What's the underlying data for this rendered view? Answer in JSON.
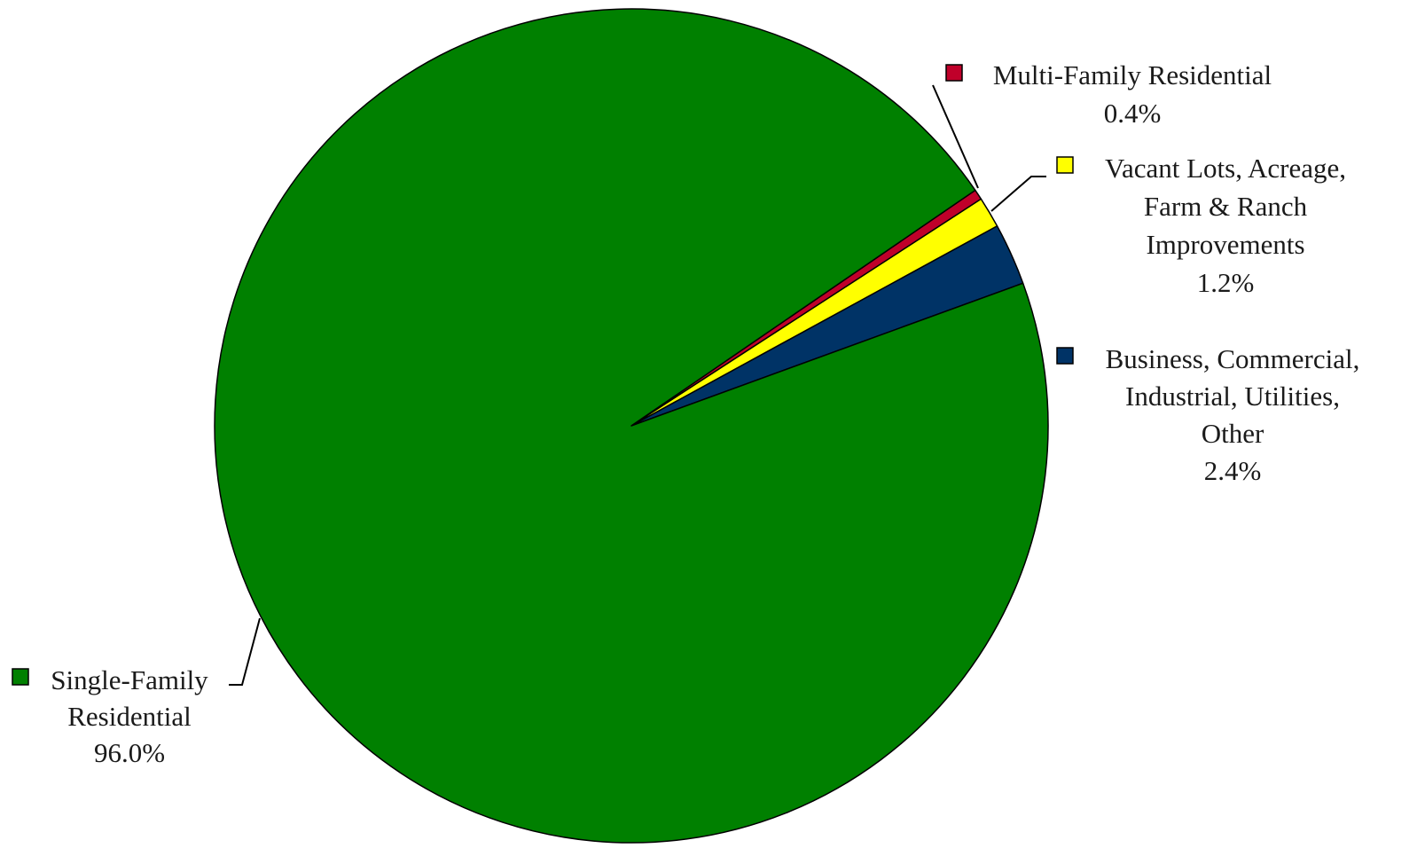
{
  "chart_data": {
    "type": "pie",
    "title": "",
    "slices": [
      {
        "name": "Business, Commercial, Industrial, Utilities, Other",
        "label_lines": [
          "Business, Commercial,",
          "Industrial, Utilities,",
          "Other"
        ],
        "value": 2.4,
        "value_label": "2.4%",
        "color": "#003366"
      },
      {
        "name": "Vacant Lots, Acreage, Farm & Ranch Improvements",
        "label_lines": [
          "Vacant Lots, Acreage,",
          "Farm & Ranch",
          "Improvements"
        ],
        "value": 1.2,
        "value_label": "1.2%",
        "color": "#FFFF00"
      },
      {
        "name": "Multi-Family Residential",
        "label_lines": [
          "Multi-Family Residential"
        ],
        "value": 0.4,
        "value_label": "0.4%",
        "color": "#C0002A"
      },
      {
        "name": "Single-Family Residential",
        "label_lines": [
          "Single-Family",
          "Residential"
        ],
        "value": 96.0,
        "value_label": "96.0%",
        "color": "#008000"
      }
    ],
    "legend_placement": "labels beside slices with leader lines",
    "grid": false
  }
}
